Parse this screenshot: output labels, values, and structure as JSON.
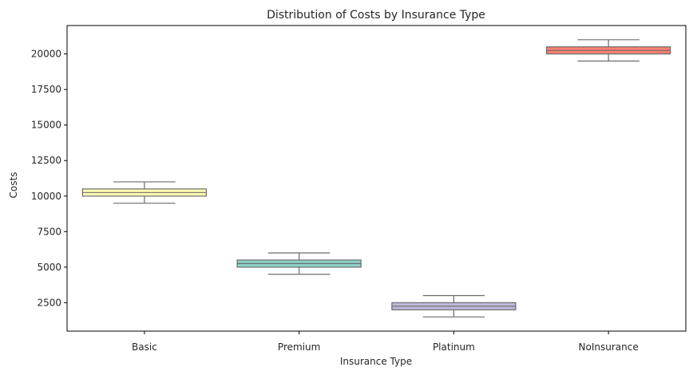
{
  "chart_data": {
    "type": "box",
    "title": "Distribution of Costs by Insurance Type",
    "xlabel": "Insurance Type",
    "ylabel": "Costs",
    "ylim": [
      500,
      22000
    ],
    "yticks": [
      2500,
      5000,
      7500,
      10000,
      12500,
      15000,
      17500,
      20000
    ],
    "categories": [
      "Basic",
      "Premium",
      "Platinum",
      "NoInsurance"
    ],
    "boxes": [
      {
        "category": "Basic",
        "min": 9500,
        "q1": 10000,
        "median": 10250,
        "q3": 10500,
        "max": 11000,
        "color": "#ffffb3"
      },
      {
        "category": "Premium",
        "min": 4500,
        "q1": 5000,
        "median": 5250,
        "q3": 5500,
        "max": 6000,
        "color": "#8dd3c7"
      },
      {
        "category": "Platinum",
        "min": 1500,
        "q1": 2000,
        "median": 2250,
        "q3": 2500,
        "max": 3000,
        "color": "#bebada"
      },
      {
        "category": "NoInsurance",
        "min": 19500,
        "q1": 20000,
        "median": 20250,
        "q3": 20500,
        "max": 21000,
        "color": "#fb8072"
      }
    ],
    "grid": false,
    "legend": "none"
  }
}
